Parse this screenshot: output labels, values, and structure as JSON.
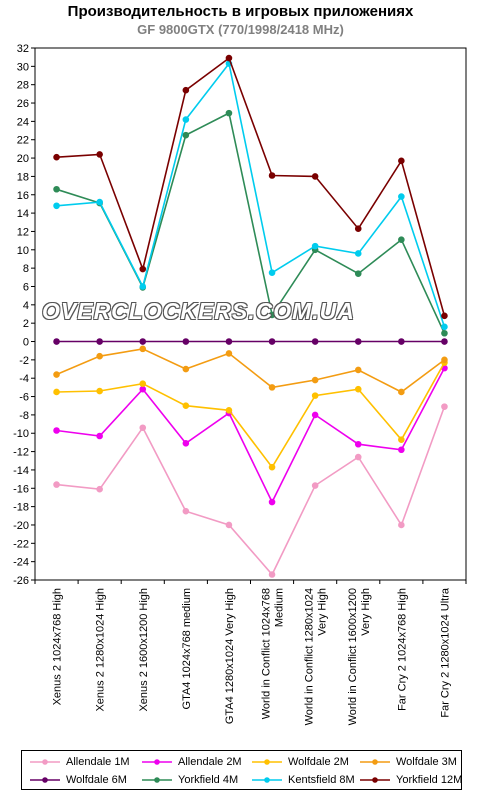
{
  "chart_data": {
    "type": "line",
    "title": "Производительность в игровых приложениях",
    "subtitle": "GF 9800GTX (770/1998/2418 MHz)",
    "watermark": "OVERCLOCKERS.COM.UA",
    "xlabel": "",
    "ylabel": "",
    "ylim": [
      -26,
      32
    ],
    "ytick_step": 2,
    "grid": false,
    "legend_placement": "bottom",
    "categories": [
      [
        "Xenus 2 1024x768 High"
      ],
      [
        "Xenus 2 1280x1024 High"
      ],
      [
        "Xenus 2 1600x1200 High"
      ],
      [
        "GTA4 1024x768 medium"
      ],
      [
        "GTA4 1280x1024 Very High"
      ],
      [
        "World in Conflict 1024x768",
        "Medium"
      ],
      [
        "World in Conflict 1280x1024",
        "Very High"
      ],
      [
        "World in Conflict 1600x1200",
        "Very High"
      ],
      [
        "Far Cry 2 1024x768 High"
      ],
      [
        "Far Cry 2 1280x1024 Ultra"
      ]
    ],
    "series": [
      {
        "name": "Allendale 1M",
        "color": "#f29bc4",
        "values": [
          -15.6,
          -16.1,
          -9.4,
          -18.5,
          -20,
          -25.4,
          -15.7,
          -12.6,
          -20,
          -7.1
        ]
      },
      {
        "name": "Allendale 2M",
        "color": "#ee00ee",
        "values": [
          -9.7,
          -10.3,
          -5.2,
          -11.1,
          -7.8,
          -17.5,
          -8,
          -11.2,
          -11.8,
          -2.9
        ]
      },
      {
        "name": "Wolfdale 2M",
        "color": "#ffc000",
        "values": [
          -5.5,
          -5.4,
          -4.6,
          -7,
          -7.5,
          -13.7,
          -5.9,
          -5.2,
          -10.7,
          -2.3
        ]
      },
      {
        "name": "Wolfdale 3M",
        "color": "#f39c12",
        "values": [
          -3.6,
          -1.6,
          -0.8,
          -3,
          -1.3,
          -5,
          -4.2,
          -3.1,
          -5.5,
          -2
        ]
      },
      {
        "name": "Wolfdale 6M",
        "color": "#660066",
        "values": [
          0,
          0,
          0,
          0,
          0,
          0,
          0,
          0,
          0,
          0
        ]
      },
      {
        "name": "Yorkfield 4M",
        "color": "#2e8b57",
        "values": [
          16.6,
          15.1,
          5.9,
          22.5,
          24.9,
          2.9,
          10,
          7.4,
          11.1,
          0.9
        ]
      },
      {
        "name": "Kentsfield 8M",
        "color": "#00ccee",
        "values": [
          14.8,
          15.2,
          6,
          24.2,
          30.3,
          7.5,
          10.4,
          9.6,
          15.8,
          1.6
        ]
      },
      {
        "name": "Yorkfield 12M",
        "color": "#7a0000",
        "values": [
          20.1,
          20.4,
          7.9,
          27.4,
          30.9,
          18.1,
          18,
          12.3,
          19.7,
          2.8
        ]
      }
    ]
  }
}
